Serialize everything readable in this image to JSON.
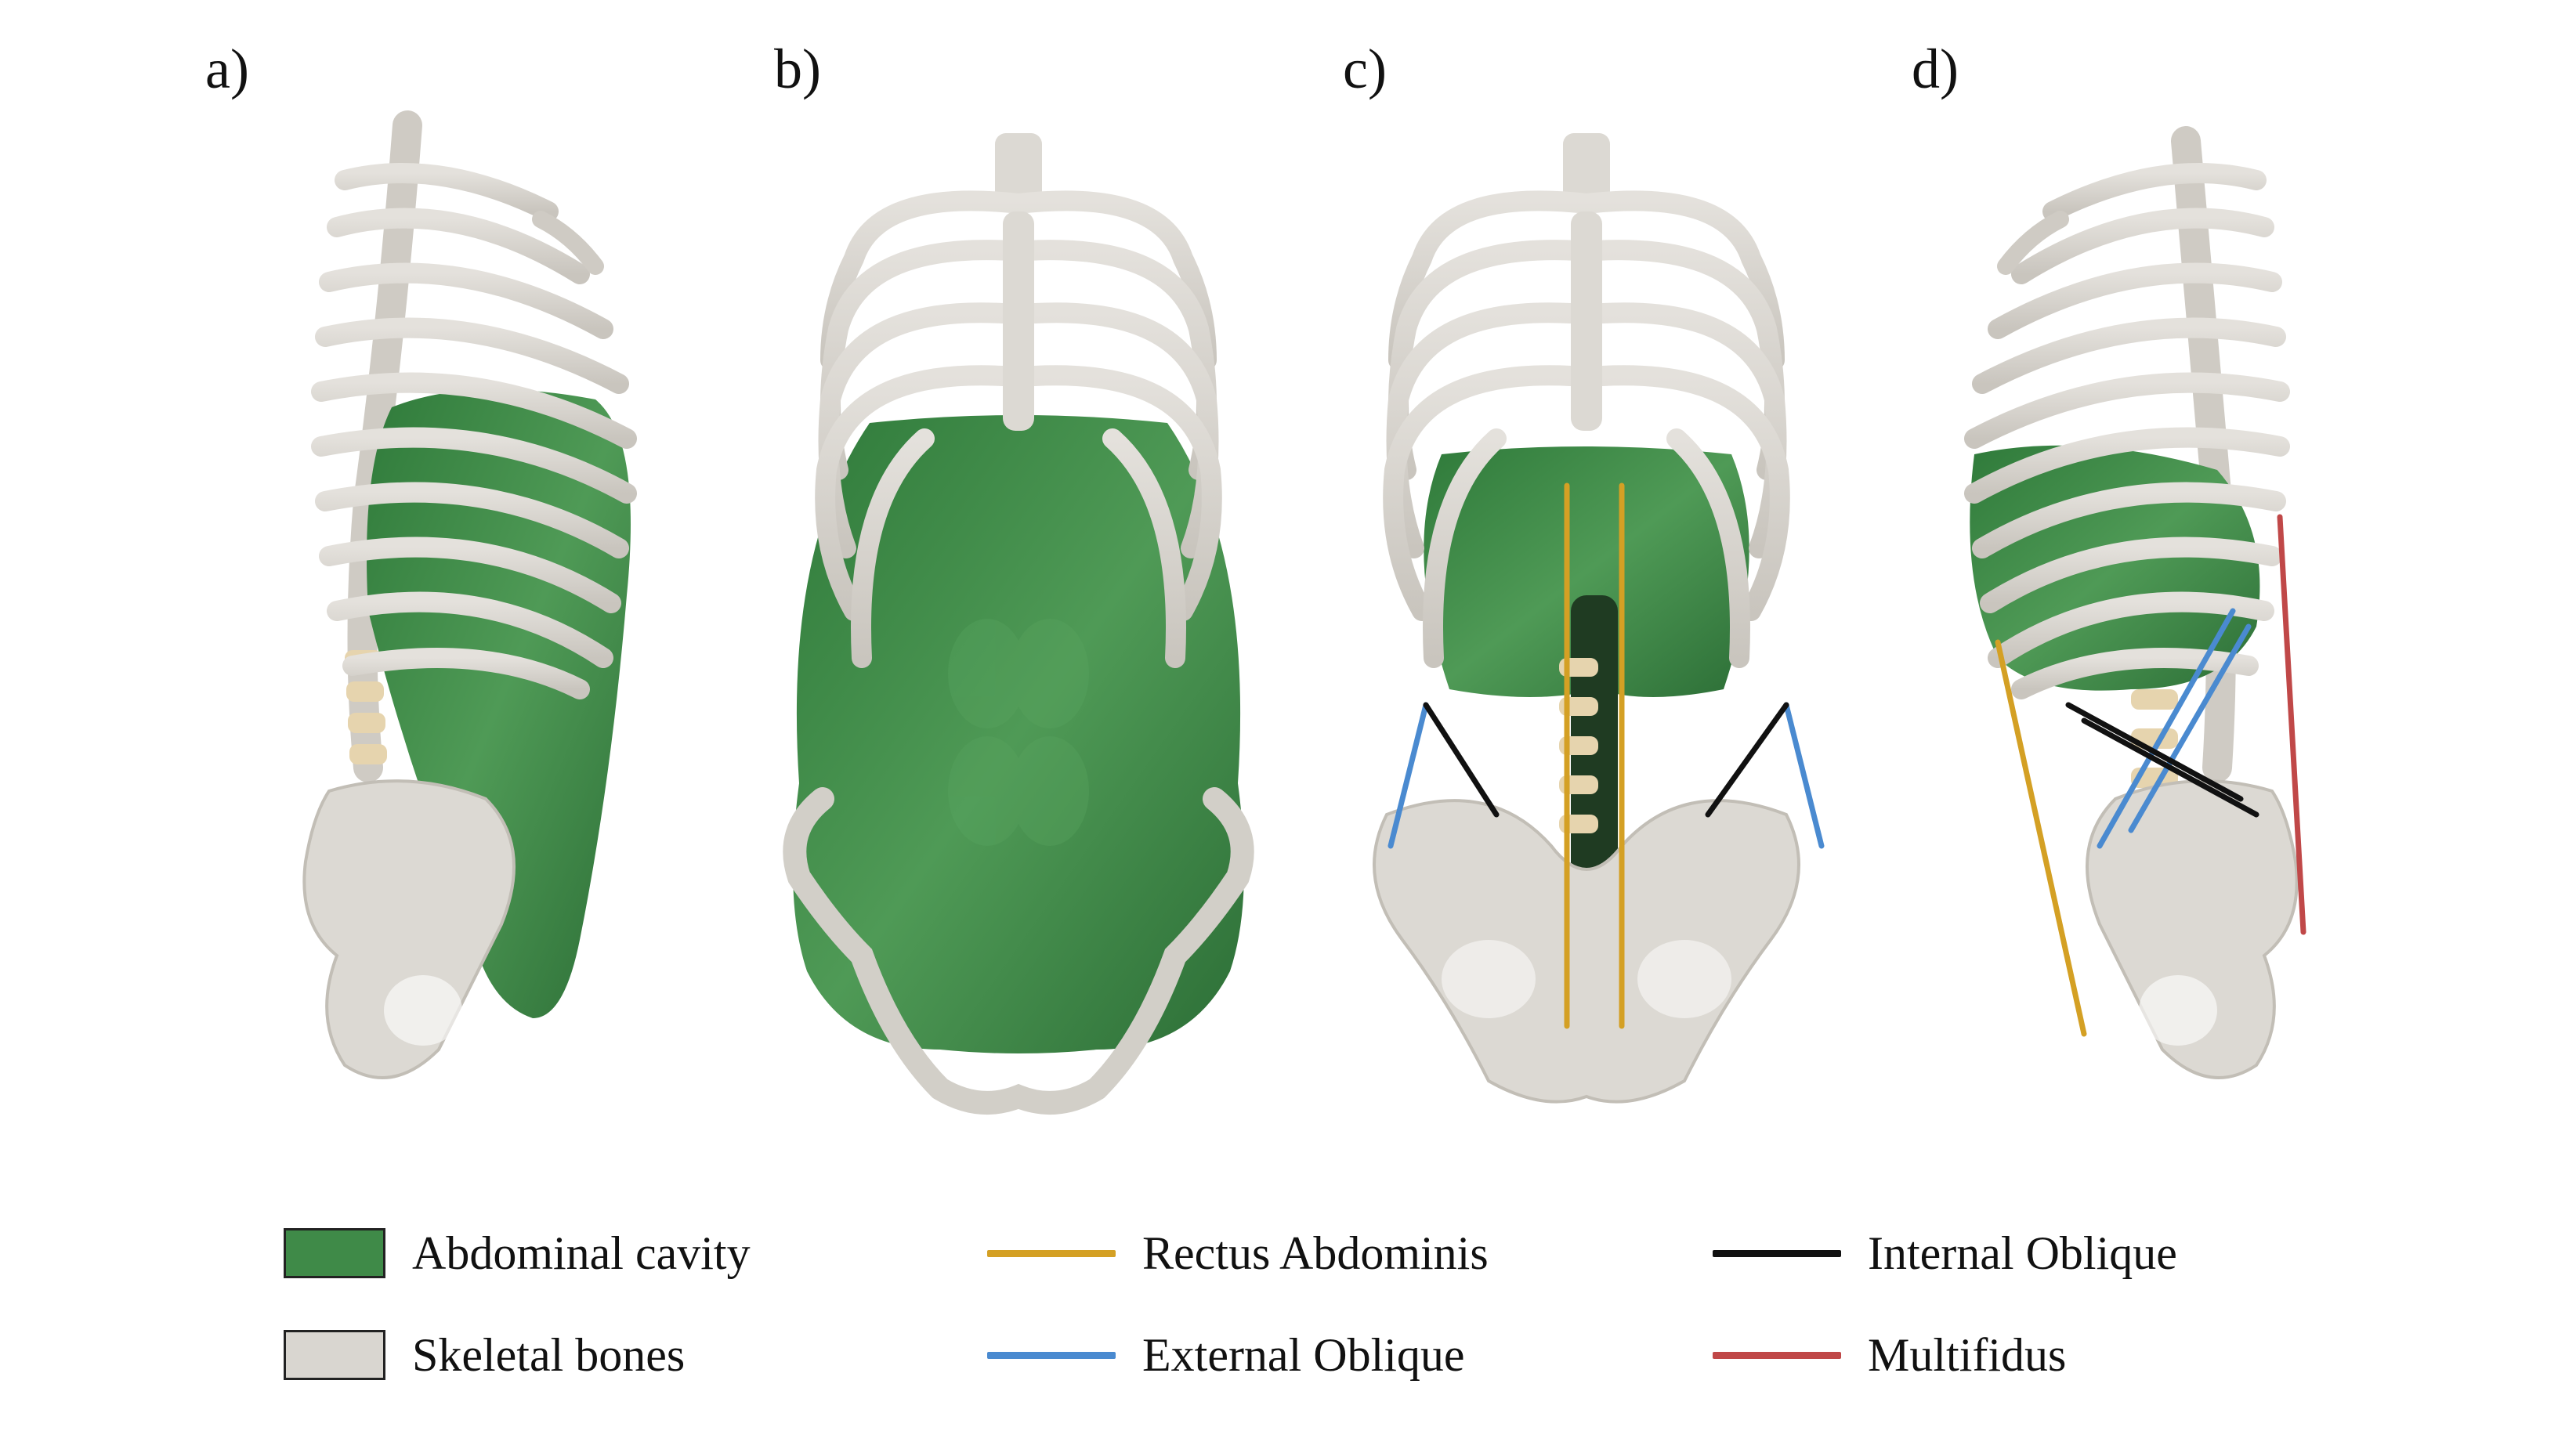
{
  "panels": [
    {
      "label": "a)"
    },
    {
      "label": "b)"
    },
    {
      "label": "c)"
    },
    {
      "label": "d)"
    }
  ],
  "legend": [
    {
      "label": "Abdominal cavity",
      "kind": "box",
      "color": "#3f8a48"
    },
    {
      "label": "Skeletal bones",
      "kind": "box",
      "color": "#d9d6d0"
    },
    {
      "label": "Rectus Abdominis",
      "kind": "line",
      "color": "#d4a024"
    },
    {
      "label": "External Oblique",
      "kind": "line",
      "color": "#4a8ad0"
    },
    {
      "label": "Internal Oblique",
      "kind": "line",
      "color": "#111111"
    },
    {
      "label": "Multifidus",
      "kind": "line",
      "color": "#c04848"
    }
  ],
  "colors": {
    "cavity": "#3f8a48",
    "cavity_light": "#56a05c",
    "bone": "#d9d6d0",
    "bone_shade": "#b9b5ad",
    "vertebra": "#e6d4ae"
  }
}
